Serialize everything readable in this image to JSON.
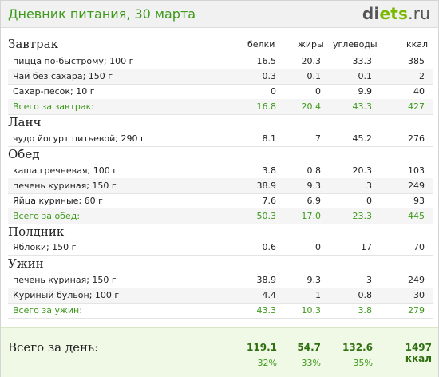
{
  "header": {
    "title": "Дневник питания, 30 марта",
    "logo_a": "di",
    "logo_b": "ets",
    "logo_c": ".ru"
  },
  "columns": {
    "protein": "белки",
    "fat": "жиры",
    "carbs": "углеводы",
    "kcal": "ккал"
  },
  "meals": {
    "breakfast": {
      "title": "Завтрак",
      "rows": [
        {
          "name": "пицца по-быстрому; 100 г",
          "p": "16.5",
          "f": "20.3",
          "c": "33.3",
          "k": "385"
        },
        {
          "name": "Чай без сахара; 150 г",
          "p": "0.3",
          "f": "0.1",
          "c": "0.1",
          "k": "2"
        },
        {
          "name": "Сахар-песок; 10 г",
          "p": "0",
          "f": "0",
          "c": "9.9",
          "k": "40"
        }
      ],
      "total": {
        "name": "Всего за завтрак:",
        "p": "16.8",
        "f": "20.4",
        "c": "43.3",
        "k": "427"
      }
    },
    "lunch": {
      "title": "Ланч",
      "rows": [
        {
          "name": "чудо йогурт питьевой; 290 г",
          "p": "8.1",
          "f": "7",
          "c": "45.2",
          "k": "276"
        }
      ]
    },
    "dinner": {
      "title": "Обед",
      "rows": [
        {
          "name": "каша гречневая; 100 г",
          "p": "3.8",
          "f": "0.8",
          "c": "20.3",
          "k": "103"
        },
        {
          "name": "печень куриная; 150 г",
          "p": "38.9",
          "f": "9.3",
          "c": "3",
          "k": "249"
        },
        {
          "name": "Яйца куриные; 60 г",
          "p": "7.6",
          "f": "6.9",
          "c": "0",
          "k": "93"
        }
      ],
      "total": {
        "name": "Всего за обед:",
        "p": "50.3",
        "f": "17.0",
        "c": "23.3",
        "k": "445"
      }
    },
    "snack": {
      "title": "Полдник",
      "rows": [
        {
          "name": "Яблоки; 150 г",
          "p": "0.6",
          "f": "0",
          "c": "17",
          "k": "70"
        }
      ]
    },
    "supper": {
      "title": "Ужин",
      "rows": [
        {
          "name": "печень куриная; 150 г",
          "p": "38.9",
          "f": "9.3",
          "c": "3",
          "k": "249"
        },
        {
          "name": "Куриный бульон; 100 г",
          "p": "4.4",
          "f": "1",
          "c": "0.8",
          "k": "30"
        }
      ],
      "total": {
        "name": "Всего за ужин:",
        "p": "43.3",
        "f": "10.3",
        "c": "3.8",
        "k": "279"
      }
    }
  },
  "day_total": {
    "label": "Всего за день:",
    "p": "119.1",
    "f": "54.7",
    "c": "132.6",
    "k": "1497 ккал",
    "p_pct": "32%",
    "f_pct": "33%",
    "c_pct": "35%"
  },
  "colors": {
    "accent_green": "#3d9a1b",
    "logo_green": "#7ab800",
    "summary_bg": "#f0f9e6"
  }
}
